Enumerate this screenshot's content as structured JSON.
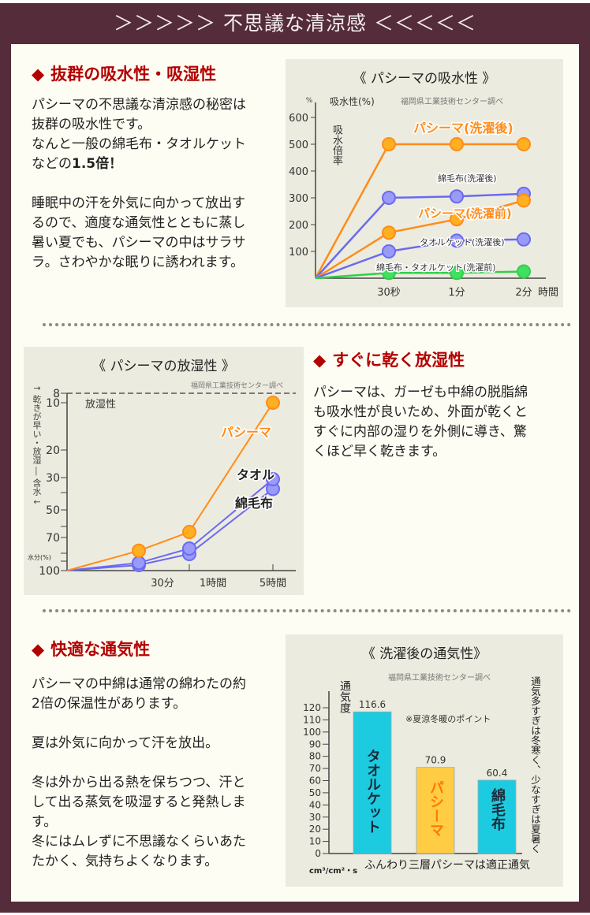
{
  "banner": {
    "title": "＞＞＞＞＞ 不思議な清涼感 ＜＜＜＜＜"
  },
  "colors": {
    "frame": "#552c3a",
    "heading": "#b30000",
    "orange": "#ff8c1a",
    "blue": "#6a6af2",
    "green": "#2fd04a",
    "cyan": "#1ccbe0",
    "yellow": "#ffcc44"
  },
  "sections": [
    {
      "heading": "抜群の吸水性・吸湿性",
      "icon": "diamond-icon",
      "lines": [
        "パシーマの不思議な清涼感の秘密は",
        "抜群の吸水性です。",
        "なんと一般の綿毛布・タオルケット",
        "",
        "",
        "睡眠中の汗を外気に向かって放出す",
        "るので、適度な通気性とともに蒸し",
        "暑い夏でも、パシーマの中はサラサ",
        "ラ。さわやかな眠りに誘われます。"
      ],
      "line4_prefix": "などの",
      "line4_bold": "1.5倍！"
    },
    {
      "heading": "すぐに乾く放湿性",
      "icon": "diamond-icon",
      "lines": [
        "パシーマは、ガーゼも中綿の脱脂綿",
        "も吸水性が良いため、外面が乾くと",
        "すぐに内部の湿りを外側に導き、驚",
        "くほど早く乾きます。"
      ]
    },
    {
      "heading": "快適な通気性",
      "icon": "diamond-icon",
      "lines": [
        "パシーマの中綿は通常の綿わたの約",
        "2倍の保温性があります。",
        "",
        "夏は外気に向かって汗を放出。",
        "",
        "冬は外から出る熱を保ちつつ、汗と",
        "して出る蒸気を吸湿すると発熱しま",
        "す。",
        "冬にはムレずに不思議なくらいあた",
        "たかく、気持ちよくなります。"
      ]
    }
  ],
  "chart_data": [
    {
      "type": "line",
      "title": "《 パシーマの吸水性 》",
      "source": "福岡県工業技術センター調べ",
      "ylabel": "吸水性(%)",
      "yunit": "%",
      "ylabel2": "吸水倍率",
      "xlabel": "時間",
      "categories": [
        "",
        "30秒",
        "1分",
        "2分"
      ],
      "ylim": [
        0,
        600
      ],
      "yticks": [
        100,
        200,
        300,
        400,
        500,
        600
      ],
      "series": [
        {
          "name": "パシーマ(洗濯後)",
          "color": "#ff8c1a",
          "values": [
            0,
            500,
            500,
            500
          ]
        },
        {
          "name": "綿毛布(洗濯後)",
          "color": "#6a6af2",
          "values": [
            0,
            300,
            305,
            315
          ]
        },
        {
          "name": "パシーマ(洗濯前)",
          "color": "#ff8c1a",
          "values": [
            0,
            170,
            220,
            290
          ]
        },
        {
          "name": "タオルケット(洗濯後)",
          "color": "#6a6af2",
          "values": [
            0,
            100,
            140,
            145
          ]
        },
        {
          "name": "綿毛布・タオルケット(洗濯前)",
          "color": "#2fd04a",
          "values": [
            0,
            20,
            20,
            25
          ]
        }
      ]
    },
    {
      "type": "line",
      "title": "《 パシーマの放湿性 》",
      "source": "福岡県工業技術センター調べ",
      "ylabel": "水分(%)",
      "ylabel_side": "↑ 乾きが早い・放湿 ― 含水 ↓",
      "reference_label": "放湿性",
      "categories": [
        "",
        "30分",
        "1時間",
        "5時間"
      ],
      "ylim": [
        100,
        8
      ],
      "yticks": [
        8,
        10,
        20,
        30,
        50,
        70,
        100
      ],
      "series": [
        {
          "name": "パシーマ",
          "color": "#ff8c1a",
          "values": [
            100,
            82,
            66,
            10
          ]
        },
        {
          "name": "タオル",
          "color": "#6a6af2",
          "values": [
            100,
            93,
            80,
            31
          ]
        },
        {
          "name": "綿毛布",
          "color": "#6a6af2",
          "values": [
            100,
            95,
            85,
            37
          ]
        }
      ]
    },
    {
      "type": "bar",
      "title": "《 洗濯後の通気性》",
      "source": "福岡県工業技術センター調べ",
      "ylabel": "通気度",
      "yunit": "cm³/cm²・s",
      "note": "※夏涼冬暖のポイント",
      "side_note": "通気多すぎは冬寒く、少なすぎは夏暑く",
      "xlabel": "ふんわり三層パシーマは適正通気",
      "ylim": [
        0,
        120
      ],
      "yticks": [
        0,
        10,
        20,
        30,
        40,
        50,
        60,
        70,
        80,
        90,
        100,
        110,
        120
      ],
      "categories": [
        "タオルケット",
        "パシーマ",
        "綿毛布"
      ],
      "values": [
        116.6,
        70.9,
        60.4
      ],
      "labels": [
        "116.6",
        "70.9",
        "60.4"
      ],
      "bar_colors": [
        "#1ccbe0",
        "#ffcc44",
        "#1ccbe0"
      ],
      "text_colors": [
        "#1a2a3a",
        "#ff7a00",
        "#1a2a3a"
      ]
    }
  ]
}
